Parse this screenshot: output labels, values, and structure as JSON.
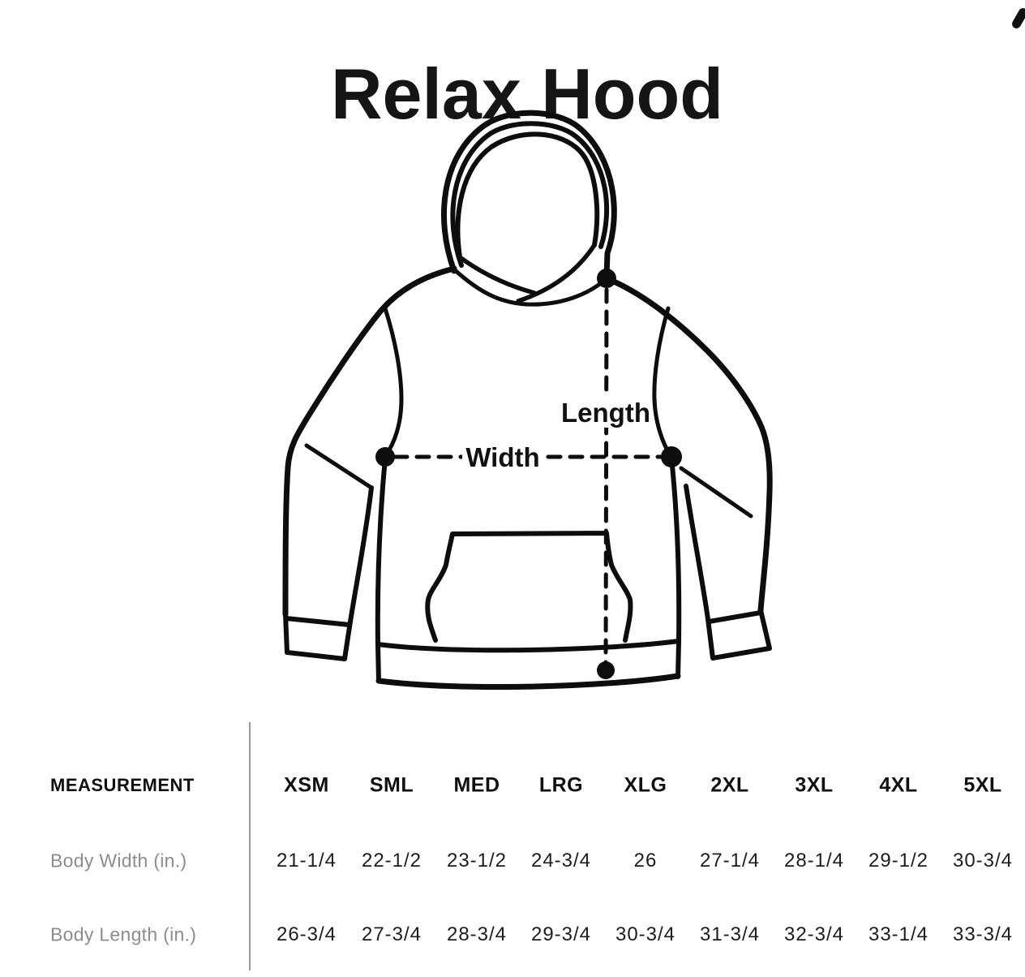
{
  "title": "Relax Hood",
  "diagram": {
    "width_label": "Width",
    "length_label": "Length"
  },
  "table": {
    "measurement_header": "MEASUREMENT",
    "size_headers": [
      "XSM",
      "SML",
      "MED",
      "LRG",
      "XLG",
      "2XL",
      "3XL",
      "4XL",
      "5XL"
    ],
    "rows": [
      {
        "label": "Body Width (in.)",
        "values": [
          "21-1/4",
          "22-1/2",
          "23-1/2",
          "24-3/4",
          "26",
          "27-1/4",
          "28-1/4",
          "29-1/2",
          "30-3/4"
        ]
      },
      {
        "label": "Body Length (in.)",
        "values": [
          "26-3/4",
          "27-3/4",
          "28-3/4",
          "29-3/4",
          "30-3/4",
          "31-3/4",
          "32-3/4",
          "33-1/4",
          "33-3/4"
        ]
      }
    ]
  },
  "colors": {
    "line_art": "#0d0d0d",
    "label_gray": "#8d8d8d",
    "divider_gray": "#9a9a9a",
    "text_black": "#101010"
  }
}
